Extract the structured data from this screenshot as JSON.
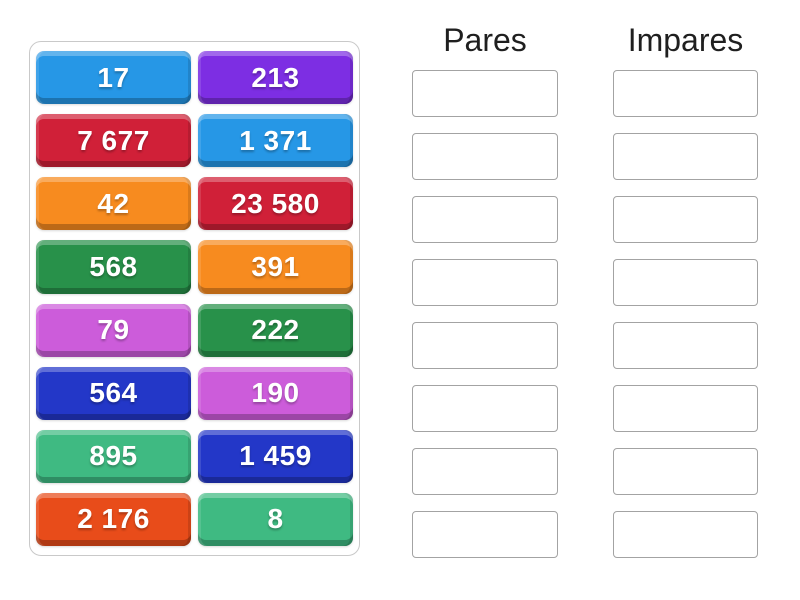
{
  "activity": {
    "groups": [
      {
        "label": "Pares",
        "slot_count": 8
      },
      {
        "label": "Impares",
        "slot_count": 8
      }
    ],
    "tiles": [
      {
        "label": "17",
        "color": "skyblue"
      },
      {
        "label": "213",
        "color": "purple"
      },
      {
        "label": "7 677",
        "color": "crimson"
      },
      {
        "label": "1 371",
        "color": "skyblue"
      },
      {
        "label": "42",
        "color": "orange"
      },
      {
        "label": "23 580",
        "color": "crimson"
      },
      {
        "label": "568",
        "color": "green"
      },
      {
        "label": "391",
        "color": "orange"
      },
      {
        "label": "79",
        "color": "orchid"
      },
      {
        "label": "222",
        "color": "green"
      },
      {
        "label": "564",
        "color": "royalblue"
      },
      {
        "label": "190",
        "color": "orchid"
      },
      {
        "label": "895",
        "color": "emerald"
      },
      {
        "label": "1 459",
        "color": "royalblue"
      },
      {
        "label": "2 176",
        "color": "orangered"
      },
      {
        "label": "8",
        "color": "emerald"
      }
    ],
    "colors": {
      "skyblue": "#2697e6",
      "purple": "#7d2ee3",
      "crimson": "#d02038",
      "orange": "#f78b1f",
      "green": "#28914a",
      "orchid": "#cc5cda",
      "royalblue": "#2337c8",
      "emerald": "#3fba82",
      "orangered": "#e84c1a",
      "tile_text": "#ffffff",
      "header_text": "#1f1f1f",
      "slot_border": "#a3a3a3",
      "panel_border": "#c9c9c9"
    }
  }
}
